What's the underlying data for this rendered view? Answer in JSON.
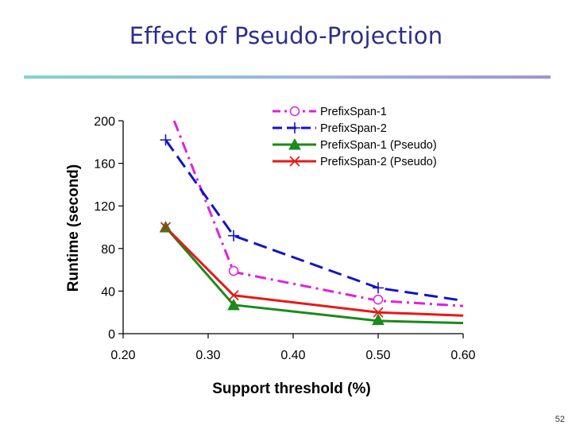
{
  "slide": {
    "title": "Effect of Pseudo-Projection",
    "page_number": "52"
  },
  "colors": {
    "title": "#2e2e8c",
    "ps1": "#e020e0",
    "ps2": "#1414c8",
    "ps1_pseudo": "#1a8a1a",
    "ps2_pseudo": "#e81818"
  },
  "chart_data": {
    "type": "line",
    "title": "",
    "xlabel": "Support threshold (%)",
    "ylabel": "Runtime (second)",
    "xlim": [
      0.2,
      0.6
    ],
    "ylim": [
      0,
      200
    ],
    "x_ticks": [
      "0.20",
      "0.30",
      "0.40",
      "0.50",
      "0.60"
    ],
    "y_ticks": [
      "0",
      "40",
      "80",
      "120",
      "160",
      "200"
    ],
    "legend_position": "top-right",
    "series": [
      {
        "name": "PrefixSpan-1",
        "color": "#e020e0",
        "dash": "dash-dot",
        "marker": "circle",
        "line_x": [
          0.26,
          0.33,
          0.5,
          0.6
        ],
        "line_y": [
          200,
          58,
          31,
          26
        ],
        "marker_x": [
          0.33,
          0.5
        ],
        "marker_y": [
          59,
          32
        ]
      },
      {
        "name": "PrefixSpan-2",
        "color": "#1414c8",
        "dash": "dash",
        "marker": "plus",
        "line_x": [
          0.25,
          0.33,
          0.5,
          0.6
        ],
        "line_y": [
          182,
          92,
          43,
          31
        ],
        "marker_x": [
          0.25,
          0.33,
          0.5
        ],
        "marker_y": [
          182,
          92,
          43
        ]
      },
      {
        "name": "PrefixSpan-1 (Pseudo)",
        "color": "#1a8a1a",
        "dash": "solid",
        "marker": "triangle",
        "line_x": [
          0.25,
          0.33,
          0.5,
          0.6
        ],
        "line_y": [
          100,
          27,
          12,
          10
        ],
        "marker_x": [
          0.25,
          0.33,
          0.5
        ],
        "marker_y": [
          100,
          27,
          13
        ]
      },
      {
        "name": "PrefixSpan-2 (Pseudo)",
        "color": "#e81818",
        "dash": "solid",
        "marker": "x",
        "line_x": [
          0.25,
          0.33,
          0.5,
          0.6
        ],
        "line_y": [
          100,
          36,
          20,
          17
        ],
        "marker_x": [
          0.25,
          0.33,
          0.5
        ],
        "marker_y": [
          100,
          36,
          20
        ]
      }
    ]
  }
}
